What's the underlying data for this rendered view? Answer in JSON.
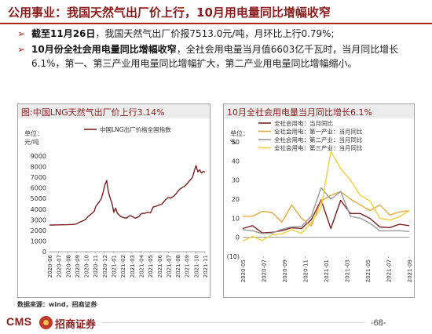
{
  "header": {
    "title": "公用事业：我国天然气出厂价上行，10月用电量同比增幅收窄"
  },
  "bullets": [
    {
      "strong": "截至11月26日",
      "text": "，我国天然气出厂价报7513.0元/吨，月环比上行0.79%;"
    },
    {
      "strong": "10月份全社会用电量同比增幅收窄",
      "text": "，全社会用电量当月值6603亿千瓦时，当月同比增长6.1%，第一、第三产业用电量同比增幅扩大，第二产业用电量同比增幅缩小。"
    }
  ],
  "colors": {
    "accent": "#b22222",
    "lng_line": "#7b1f1f",
    "series_total": "#7b1f1f",
    "series_primary": "#e8a93c",
    "series_secondary": "#999999",
    "series_tertiary": "#f2cf3c"
  },
  "source": "数据来源：wind，招商证券",
  "footer": {
    "logo_text": "CMS",
    "logo_cn": "招商证券",
    "logo_icon": "cms-emblem-icon",
    "page_number": "-68-"
  },
  "chart_data": [
    {
      "type": "line",
      "title": "图:中国LNG天然气出厂价上行3.14%",
      "ylabel": "单位：\n元/吨",
      "ylim": [
        0,
        9000
      ],
      "yticks": [
        0,
        1000,
        2000,
        3000,
        4000,
        5000,
        6000,
        7000,
        8000,
        9000
      ],
      "x_tick_labels": [
        "2020-06",
        "2020-07",
        "2020-08",
        "2020-09",
        "2020-10",
        "2020-11",
        "2020-12",
        "2021-01",
        "2021-02",
        "2021-03",
        "2021-04",
        "2021-05",
        "2021-06",
        "2021-07",
        "2021-08",
        "2021-09",
        "2021-10",
        "2021-11"
      ],
      "grid": false,
      "legend": "top",
      "series": [
        {
          "name": "中国LNG出厂价格全国指数",
          "x": [
            0,
            0.5,
            1,
            1.5,
            2,
            2.5,
            3,
            3.3,
            3.6,
            4,
            4.3,
            4.6,
            5,
            5.2,
            5.5,
            5.8,
            6,
            6.2,
            6.4,
            6.6,
            6.8,
            7,
            7.2,
            7.4,
            7.6,
            8,
            8.3,
            8.6,
            9,
            9.3,
            9.6,
            10,
            10.3,
            10.6,
            11,
            11.3,
            11.6,
            12,
            12.3,
            12.6,
            13,
            13.3,
            13.6,
            14,
            14.3,
            14.6,
            15,
            15.3,
            15.6,
            16,
            16.2,
            16.4,
            16.6,
            16.8,
            17,
            17.2,
            17.4
          ],
          "values": [
            2500,
            2510,
            2520,
            2530,
            2540,
            2560,
            2600,
            2750,
            2850,
            3000,
            3300,
            3500,
            3800,
            4300,
            4600,
            5000,
            5600,
            6300,
            6700,
            5600,
            5000,
            4500,
            3700,
            4100,
            3600,
            3300,
            3200,
            3150,
            3400,
            3300,
            3150,
            3300,
            3600,
            3600,
            3700,
            3650,
            4200,
            4300,
            4400,
            4500,
            4900,
            5100,
            5050,
            5300,
            5600,
            5900,
            6100,
            6300,
            6600,
            7000,
            7600,
            8100,
            7500,
            7700,
            7400,
            7550,
            7513
          ]
        }
      ]
    },
    {
      "type": "line",
      "title": "10月全社会用电量当月同比增长6.1%",
      "ylabel": "单位：\n%",
      "ylim": [
        -10,
        50
      ],
      "yticks": [
        -10,
        0,
        10,
        20,
        30,
        40,
        50
      ],
      "ytick_labels": [
        "(10)",
        "0",
        "10",
        "20",
        "30",
        "40",
        "50"
      ],
      "x_tick_labels": [
        "2020-05",
        "2020-07",
        "2020-09",
        "2020-11",
        "2021-01",
        "2021-03",
        "2021-05",
        "2021-07",
        "2021-09"
      ],
      "grid": false,
      "legend": "top",
      "series": [
        {
          "name": "全社会用电：当月同比",
          "x": [
            0,
            1,
            2,
            3,
            4,
            5,
            6,
            7,
            8,
            9,
            10,
            11,
            12,
            13,
            14,
            15,
            16,
            17
          ],
          "values": [
            4.6,
            6.1,
            2.3,
            2.6,
            3.5,
            5.0,
            4.6,
            9.2,
            19.6,
            4.6,
            19.4,
            12.5,
            12.5,
            9.9,
            5.4,
            5.1,
            6.8,
            6.1
          ]
        },
        {
          "name": "全社会用电：第一产业：当月同比",
          "x": [
            0,
            1,
            2,
            3,
            4,
            5,
            6,
            7,
            8,
            9,
            10,
            11,
            12,
            13,
            14,
            15,
            16,
            17
          ],
          "values": [
            11.0,
            11.0,
            13.6,
            13.0,
            7.9,
            16.9,
            10.0,
            6.0,
            19.0,
            22.0,
            24.0,
            20.0,
            17.0,
            14.0,
            17.0,
            11.7,
            13.3,
            14.0
          ]
        },
        {
          "name": "全社会用电：第二产业：当月同比",
          "x": [
            0,
            1,
            2,
            3,
            4,
            5,
            6,
            7,
            8,
            9,
            10,
            11,
            12,
            13,
            14,
            15,
            16,
            17
          ],
          "values": [
            4.0,
            3.4,
            2.0,
            2.2,
            4.2,
            5.5,
            5.8,
            11.0,
            26.0,
            20.0,
            24.0,
            11.0,
            10.0,
            7.4,
            3.4,
            3.4,
            3.5,
            3.0
          ]
        },
        {
          "name": "全社会用电：第三产业：当月同比",
          "x": [
            0,
            1,
            2,
            3,
            4,
            5,
            6,
            7,
            8,
            9,
            10,
            11,
            12,
            13,
            14,
            15,
            16,
            17
          ],
          "values": [
            -2.0,
            0.5,
            -1.7,
            1.4,
            1.8,
            4.0,
            2.1,
            7.5,
            15.5,
            45.0,
            36.0,
            30.0,
            22.0,
            19.0,
            10.0,
            9.0,
            10.7,
            14.0
          ]
        }
      ]
    }
  ]
}
